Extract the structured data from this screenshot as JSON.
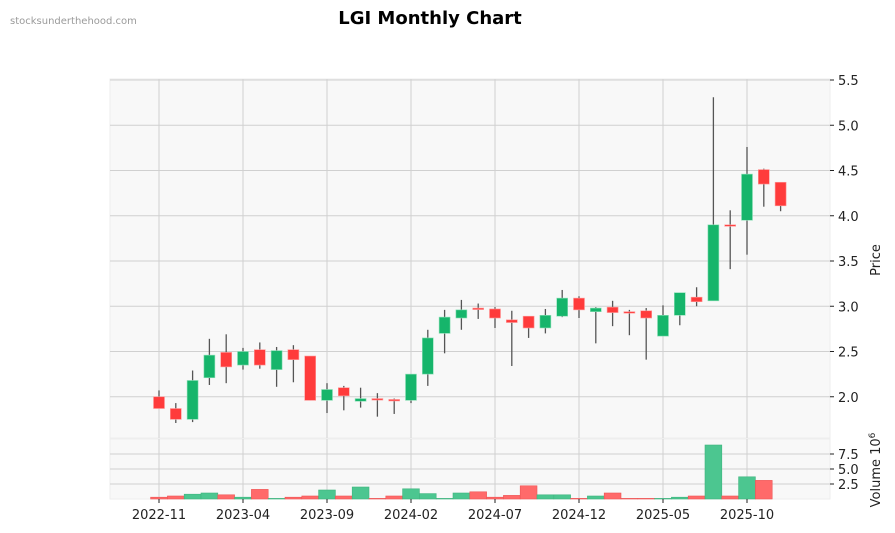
{
  "header": {
    "watermark": "stocksunderthehood.com",
    "title": "LGI Monthly Chart"
  },
  "colors": {
    "up": "#16b56b",
    "down": "#ff3b3b",
    "up_volume": "#4cc690",
    "down_volume": "#ff6a6a",
    "wick": "#555555",
    "plot_bg": "#f8f8f8",
    "grid": "#d0d0d0"
  },
  "chart_data": {
    "type": "candlestick",
    "title": "LGI Monthly Chart",
    "xlabel": "",
    "ylabel": "Price",
    "volume_label": "Volume  10^6",
    "ylim": [
      1.5,
      5.5
    ],
    "yticks": [
      "2.0",
      "2.5",
      "3.0",
      "3.5",
      "4.0",
      "4.5",
      "5.0",
      "5.5"
    ],
    "volume_ylim": [
      0,
      10
    ],
    "volume_yticks": [
      "2.5",
      "5.0",
      "7.5"
    ],
    "xtick_labels": [
      "2022-11",
      "2023-04",
      "2023-09",
      "2024-02",
      "2024-07",
      "2024-12",
      "2025-05",
      "2025-10"
    ],
    "grid": true,
    "dates": [
      "2022-11",
      "2022-12",
      "2023-01",
      "2023-02",
      "2023-03",
      "2023-04",
      "2023-05",
      "2023-06",
      "2023-07",
      "2023-08",
      "2023-09",
      "2023-10",
      "2023-11",
      "2023-12",
      "2024-01",
      "2024-02",
      "2024-03",
      "2024-04",
      "2024-05",
      "2024-06",
      "2024-07",
      "2024-08",
      "2024-09",
      "2024-10",
      "2024-11",
      "2024-12",
      "2025-01",
      "2025-02",
      "2025-03",
      "2025-04",
      "2025-05",
      "2025-06",
      "2025-07",
      "2025-08",
      "2025-09",
      "2025-10",
      "2025-11",
      "2025-12"
    ],
    "open": [
      2.0,
      1.87,
      1.75,
      2.21,
      2.49,
      2.35,
      2.52,
      2.3,
      2.52,
      2.45,
      1.96,
      2.1,
      1.95,
      1.98,
      1.97,
      1.96,
      2.25,
      2.7,
      2.87,
      2.98,
      2.97,
      2.85,
      2.89,
      2.76,
      2.89,
      3.09,
      2.94,
      2.99,
      2.94,
      2.95,
      2.67,
      2.9,
      3.1,
      3.06,
      3.9,
      3.95,
      4.51,
      4.37
    ],
    "high": [
      2.07,
      1.93,
      2.29,
      2.64,
      2.69,
      2.54,
      2.6,
      2.55,
      2.57,
      2.45,
      2.15,
      2.12,
      2.1,
      2.04,
      1.98,
      2.25,
      2.74,
      2.96,
      3.07,
      3.03,
      2.99,
      2.95,
      2.89,
      2.97,
      3.18,
      3.11,
      2.99,
      3.06,
      2.96,
      2.98,
      3.01,
      3.15,
      3.21,
      5.31,
      4.06,
      4.76,
      4.52,
      4.37
    ],
    "low": [
      1.87,
      1.71,
      1.72,
      2.13,
      2.15,
      2.3,
      2.31,
      2.11,
      2.16,
      1.96,
      1.82,
      1.85,
      1.88,
      1.78,
      1.81,
      1.93,
      2.12,
      2.48,
      2.74,
      2.86,
      2.76,
      2.34,
      2.65,
      2.7,
      2.88,
      2.87,
      2.59,
      2.78,
      2.68,
      2.41,
      2.67,
      2.79,
      3.0,
      3.06,
      3.41,
      3.57,
      4.1,
      4.05
    ],
    "close": [
      1.87,
      1.75,
      2.18,
      2.46,
      2.33,
      2.5,
      2.35,
      2.51,
      2.41,
      1.96,
      2.08,
      2.01,
      1.98,
      1.97,
      1.96,
      2.25,
      2.65,
      2.88,
      2.96,
      2.97,
      2.87,
      2.82,
      2.76,
      2.9,
      3.09,
      2.96,
      2.98,
      2.93,
      2.93,
      2.87,
      2.9,
      3.15,
      3.05,
      3.9,
      3.89,
      4.46,
      4.35,
      4.11
    ],
    "volume": [
      0.3,
      0.5,
      0.8,
      1.0,
      0.7,
      0.3,
      1.6,
      0.1,
      0.3,
      0.5,
      1.5,
      0.5,
      2.0,
      0.1,
      0.5,
      1.7,
      0.9,
      0.1,
      1.0,
      1.2,
      0.3,
      0.6,
      2.2,
      0.7,
      0.7,
      0.1,
      0.5,
      1.0,
      0.1,
      0.1,
      0.1,
      0.3,
      0.5,
      9.0,
      0.5,
      3.7,
      3.1,
      0.0
    ]
  }
}
